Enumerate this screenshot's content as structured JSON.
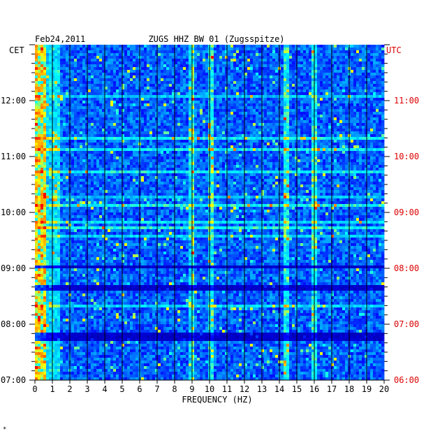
{
  "chart_data": {
    "type": "heatmap",
    "date": "Feb24,2011",
    "title": "ZUGS HHZ BW 01 (Zugsspitze)",
    "xlabel": "FREQUENCY (HZ)",
    "xlim": [
      0,
      20
    ],
    "x_ticks": [
      "0",
      "1",
      "2",
      "3",
      "4",
      "5",
      "6",
      "7",
      "8",
      "9",
      "10",
      "11",
      "12",
      "13",
      "14",
      "15",
      "16",
      "17",
      "18",
      "19",
      "20"
    ],
    "left_axis_label": "CET",
    "right_axis_label": "UTC",
    "left_ticks": [
      "12:00",
      "11:00",
      "10:00",
      "09:00",
      "08:00",
      "07:00"
    ],
    "right_ticks": [
      "11:00",
      "10:00",
      "09:00",
      "08:00",
      "07:00",
      "06:00"
    ],
    "time_range_cet": [
      "07:00",
      "13:00"
    ],
    "colorscale": [
      "#00008b",
      "#0000ff",
      "#00aaff",
      "#00ffff",
      "#ffff00",
      "#ff8800",
      "#ff0000"
    ],
    "dominant_frequencies_hz": [
      0.3,
      9.0,
      10.1,
      14.4,
      16.0
    ],
    "footer_mark": "*"
  }
}
